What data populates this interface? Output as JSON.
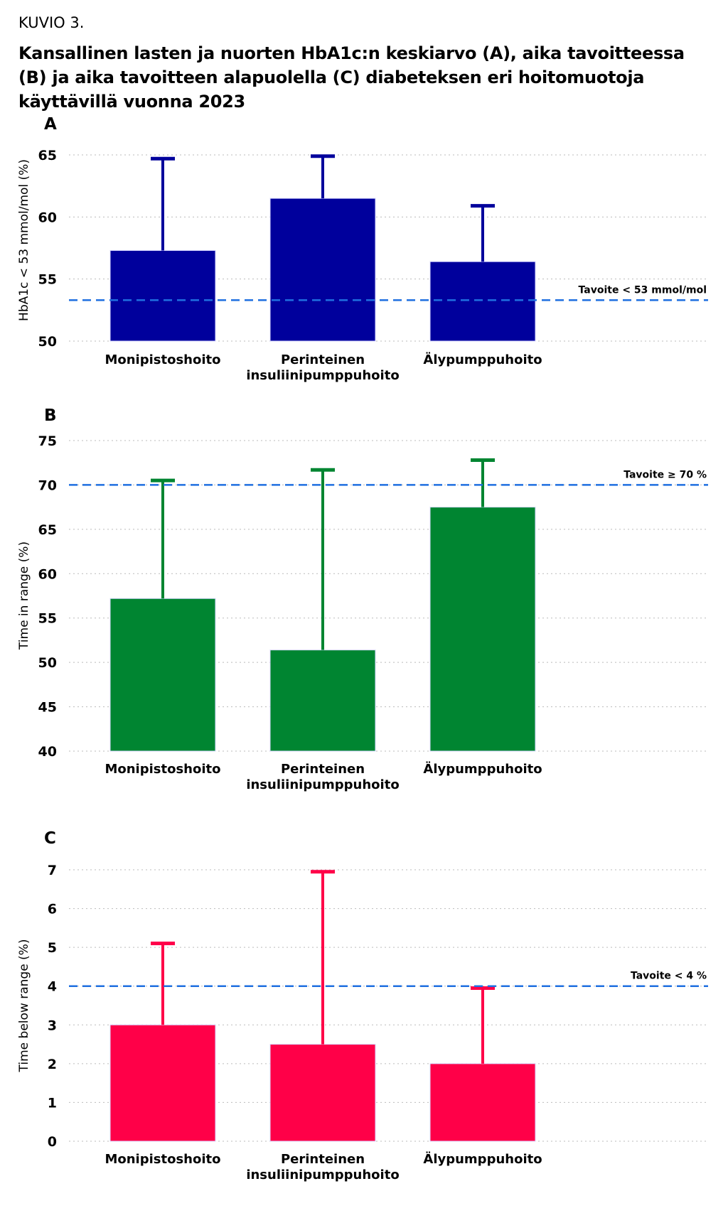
{
  "header": {
    "figure_label": "KUVIO 3.",
    "title": "Kansallinen lasten ja nuorten HbA1c:n keskiarvo (A), aika tavoitteessa (B) ja aika tavoitteen alapuolella (C) diabeteksen eri hoitomuotoja käyttävillä vuonna 2023"
  },
  "colors": {
    "panel_a": "#00009c",
    "panel_b": "#008531",
    "panel_c": "#ff0048",
    "target_line": "#1f6fe0",
    "grid": "#bbbbbb"
  },
  "chart_data": [
    {
      "type": "bar",
      "panel_label": "A",
      "categories": [
        "Monipistoshoito",
        "Perinteinen insuliinipumppuhoito",
        "Älypumppuhoito"
      ],
      "values": [
        57.3,
        61.5,
        56.4
      ],
      "error_upper": [
        64.7,
        64.9,
        60.9
      ],
      "ylabel": "HbA1c < 53 mmol/mol (%)",
      "ylim": [
        50,
        65
      ],
      "yticks": [
        50,
        55,
        60,
        65
      ],
      "target": {
        "value": 53.3,
        "label": "Tavoite < 53 mmol/mol"
      },
      "grid": true
    },
    {
      "type": "bar",
      "panel_label": "B",
      "categories": [
        "Monipistoshoito",
        "Perinteinen insuliinipumppuhoito",
        "Älypumppuhoito"
      ],
      "values": [
        57.2,
        51.4,
        67.5
      ],
      "error_upper": [
        70.5,
        71.7,
        72.8
      ],
      "ylabel": "Time in range (%)",
      "ylim": [
        40,
        75
      ],
      "yticks": [
        40,
        45,
        50,
        55,
        60,
        65,
        70,
        75
      ],
      "target": {
        "value": 70,
        "label": "Tavoite ≥ 70 %"
      },
      "grid": true
    },
    {
      "type": "bar",
      "panel_label": "C",
      "categories": [
        "Monipistoshoito",
        "Perinteinen insuliinipumppuhoito",
        "Älypumppuhoito"
      ],
      "values": [
        3.0,
        2.5,
        2.0
      ],
      "error_upper": [
        5.1,
        6.95,
        3.95
      ],
      "ylabel": "Time below range (%)",
      "ylim": [
        0,
        7
      ],
      "yticks": [
        0,
        1,
        2,
        3,
        4,
        5,
        6,
        7
      ],
      "target": {
        "value": 4,
        "label": "Tavoite < 4 %"
      },
      "grid": true
    }
  ]
}
